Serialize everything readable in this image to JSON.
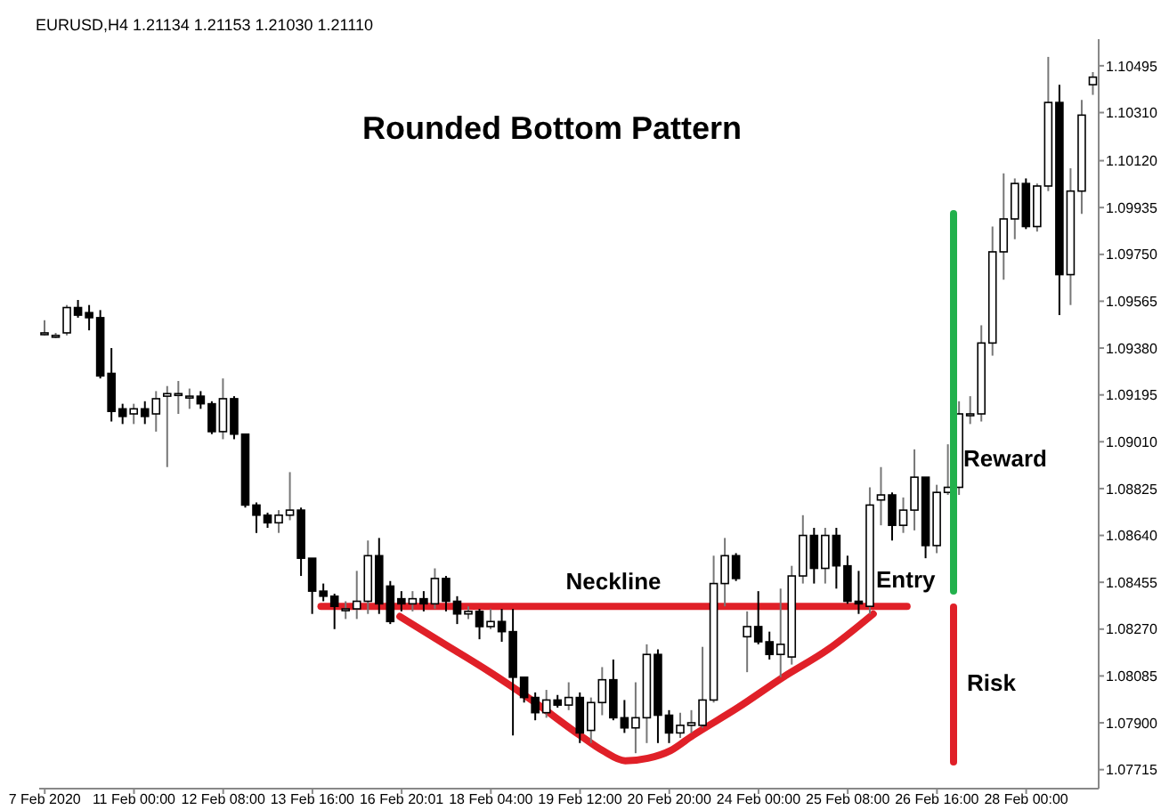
{
  "chart_data": {
    "type": "candlestick",
    "title": "Rounded Bottom Pattern",
    "annotations": [
      "EURUSD,H4  1.21134 1.21153 1.21030 1.21110",
      "Entry",
      "Reward",
      "Risk"
    ],
    "categories": [
      "7 Feb 2020",
      null,
      null,
      null,
      null,
      null,
      null,
      null,
      "11 Feb 00:00",
      null,
      null,
      null,
      null,
      null,
      null,
      null,
      "12 Feb 08:00",
      null,
      null,
      null,
      null,
      null,
      null,
      null,
      "13 Feb 16:00",
      null,
      null,
      null,
      null,
      null,
      null,
      null,
      "16 Feb 20:01",
      null,
      null,
      null,
      null,
      null,
      null,
      null,
      "18 Feb 04:00",
      null,
      null,
      null,
      null,
      null,
      null,
      null,
      "19 Feb 12:00",
      null,
      null,
      null,
      null,
      null,
      null,
      null,
      "20 Feb 20:00",
      null,
      null,
      null,
      null,
      null,
      null,
      null,
      "24 Feb 00:00",
      null,
      null,
      null,
      null,
      null,
      null,
      null,
      "25 Feb 08:00",
      null,
      null,
      null,
      null,
      null,
      null,
      null,
      "26 Feb 16:00",
      null,
      null,
      null,
      null,
      null,
      null,
      null,
      "28 Feb 00:00",
      null,
      null,
      null,
      null,
      null,
      null
    ],
    "ohlc": [
      [
        1.0944,
        1.0949,
        1.0943,
        1.0944
      ],
      [
        1.0943,
        1.0944,
        1.0942,
        1.0943
      ],
      [
        1.0944,
        1.0955,
        1.0943,
        1.0954
      ],
      [
        1.0954,
        1.0957,
        1.095,
        1.0951
      ],
      [
        1.0952,
        1.0955,
        1.0945,
        1.095
      ],
      [
        1.095,
        1.0953,
        1.0926,
        1.0927
      ],
      [
        1.0928,
        1.0938,
        1.0909,
        1.0913
      ],
      [
        1.0914,
        1.0916,
        1.0908,
        1.0911
      ],
      [
        1.0912,
        1.0916,
        1.0908,
        1.0914
      ],
      [
        1.0914,
        1.0917,
        1.0908,
        1.0911
      ],
      [
        1.0912,
        1.0921,
        1.0905,
        1.0918
      ],
      [
        1.0919,
        1.0923,
        1.0891,
        1.092
      ],
      [
        1.092,
        1.0925,
        1.0912,
        1.092
      ],
      [
        1.0919,
        1.0922,
        1.0914,
        1.0919
      ],
      [
        1.0919,
        1.0921,
        1.0914,
        1.0916
      ],
      [
        1.0916,
        1.0917,
        1.0904,
        1.0905
      ],
      [
        1.0905,
        1.0926,
        1.0902,
        1.0918
      ],
      [
        1.0918,
        1.0919,
        1.0902,
        1.0904
      ],
      [
        1.0904,
        1.0904,
        1.0875,
        1.0876
      ],
      [
        1.0876,
        1.0877,
        1.0865,
        1.0872
      ],
      [
        1.0872,
        1.0873,
        1.0867,
        1.0869
      ],
      [
        1.0869,
        1.0874,
        1.0865,
        1.0872
      ],
      [
        1.0872,
        1.0889,
        1.087,
        1.0874
      ],
      [
        1.0874,
        1.0875,
        1.0848,
        1.0855
      ],
      [
        1.0855,
        1.0855,
        1.0833,
        1.0842
      ],
      [
        1.0842,
        1.0845,
        1.0838,
        1.084
      ],
      [
        1.084,
        1.0841,
        1.0827,
        1.0836
      ],
      [
        1.0835,
        1.0838,
        1.0831,
        1.0835
      ],
      [
        1.0835,
        1.085,
        1.0831,
        1.0838
      ],
      [
        1.0838,
        1.0862,
        1.0833,
        1.0856
      ],
      [
        1.0856,
        1.0863,
        1.0833,
        1.0837
      ],
      [
        1.0844,
        1.0846,
        1.0829,
        1.083
      ],
      [
        1.0839,
        1.0842,
        1.0834,
        1.0837
      ],
      [
        1.0837,
        1.0842,
        1.0834,
        1.0839
      ],
      [
        1.0839,
        1.0842,
        1.0834,
        1.0837
      ],
      [
        1.0837,
        1.0851,
        1.0835,
        1.0847
      ],
      [
        1.0847,
        1.0848,
        1.0834,
        1.0838
      ],
      [
        1.0838,
        1.084,
        1.0829,
        1.0833
      ],
      [
        1.0833,
        1.0836,
        1.0831,
        1.0834
      ],
      [
        1.0834,
        1.0835,
        1.0823,
        1.0828
      ],
      [
        1.0828,
        1.0835,
        1.0827,
        1.083
      ],
      [
        1.083,
        1.0835,
        1.0822,
        1.0826
      ],
      [
        1.0826,
        1.0835,
        1.0785,
        1.0808
      ],
      [
        1.0808,
        1.0808,
        1.0798,
        1.08
      ],
      [
        1.08,
        1.0802,
        1.0791,
        1.0794
      ],
      [
        1.0794,
        1.0803,
        1.0792,
        1.0799
      ],
      [
        1.0799,
        1.0801,
        1.0796,
        1.0797
      ],
      [
        1.0797,
        1.0806,
        1.0795,
        1.08
      ],
      [
        1.08,
        1.0802,
        1.0782,
        1.0786
      ],
      [
        1.0787,
        1.08,
        1.0782,
        1.0798
      ],
      [
        1.0798,
        1.0812,
        1.0793,
        1.0807
      ],
      [
        1.0807,
        1.0815,
        1.0791,
        1.0792
      ],
      [
        1.0792,
        1.0799,
        1.0786,
        1.0788
      ],
      [
        1.0788,
        1.0806,
        1.0778,
        1.0792
      ],
      [
        1.0792,
        1.0821,
        1.0782,
        1.0817
      ],
      [
        1.0817,
        1.0819,
        1.0782,
        1.0793
      ],
      [
        1.0793,
        1.0795,
        1.0782,
        1.0786
      ],
      [
        1.0786,
        1.0794,
        1.0784,
        1.0789
      ],
      [
        1.0789,
        1.0795,
        1.0786,
        1.079
      ],
      [
        1.0789,
        1.082,
        1.0788,
        1.0799
      ],
      [
        1.0799,
        1.0856,
        1.0798,
        1.0845
      ],
      [
        1.0845,
        1.0863,
        1.0836,
        1.0856
      ],
      [
        1.0856,
        1.0857,
        1.0846,
        1.0847
      ],
      [
        1.0824,
        1.0834,
        1.081,
        1.0828
      ],
      [
        1.0828,
        1.0842,
        1.0821,
        1.0822
      ],
      [
        1.0822,
        1.0826,
        1.0815,
        1.0817
      ],
      [
        1.0817,
        1.0843,
        1.0808,
        1.0821
      ],
      [
        1.0816,
        1.0852,
        1.0813,
        1.0848
      ],
      [
        1.0848,
        1.0872,
        1.0845,
        1.0864
      ],
      [
        1.0864,
        1.0867,
        1.0845,
        1.0851
      ],
      [
        1.0851,
        1.0867,
        1.0845,
        1.0864
      ],
      [
        1.0864,
        1.0867,
        1.0843,
        1.0852
      ],
      [
        1.0852,
        1.0856,
        1.0837,
        1.0838
      ],
      [
        1.0838,
        1.085,
        1.0833,
        1.0837
      ],
      [
        1.0836,
        1.0883,
        1.0833,
        1.0876
      ],
      [
        1.0878,
        1.0891,
        1.0868,
        1.088
      ],
      [
        1.088,
        1.0881,
        1.0862,
        1.0868
      ],
      [
        1.0868,
        1.0879,
        1.0865,
        1.0874
      ],
      [
        1.0874,
        1.0898,
        1.0866,
        1.0887
      ],
      [
        1.0887,
        1.0887,
        1.0855,
        1.086
      ],
      [
        1.086,
        1.0884,
        1.0857,
        1.0881
      ],
      [
        1.0881,
        1.09,
        1.088,
        1.0883
      ],
      [
        1.0883,
        1.0917,
        1.088,
        1.0912
      ],
      [
        1.0912,
        1.0919,
        1.0908,
        1.0912
      ],
      [
        1.0912,
        1.0947,
        1.0909,
        1.094
      ],
      [
        1.094,
        1.0986,
        1.0935,
        1.0976
      ],
      [
        1.0976,
        1.1007,
        1.0965,
        1.0989
      ],
      [
        1.0989,
        1.1005,
        1.0981,
        1.1003
      ],
      [
        1.1003,
        1.1005,
        1.0985,
        1.0986
      ],
      [
        1.0986,
        1.1003,
        1.0984,
        1.1002
      ],
      [
        1.1002,
        1.1053,
        1.1,
        1.1035
      ],
      [
        1.1035,
        1.1042,
        1.0951,
        1.0967
      ],
      [
        1.0967,
        1.1009,
        1.0955,
        1.1
      ],
      [
        1.1,
        1.1036,
        1.0991,
        1.103
      ],
      [
        1.1042,
        1.1047,
        1.1038,
        1.1045
      ]
    ],
    "series": [
      {
        "type": "line",
        "name": "Neckline",
        "color": "#e02028",
        "values": [
          null,
          null,
          null,
          null,
          null,
          null,
          null,
          null,
          null,
          null,
          null,
          null,
          null,
          null,
          null,
          null,
          null,
          null,
          null,
          null,
          null,
          null,
          null,
          null,
          null,
          1.0836,
          null,
          null,
          null,
          null,
          null,
          null,
          null,
          null,
          null,
          null,
          null,
          null,
          null,
          null,
          null,
          null,
          null,
          null,
          null,
          null,
          null,
          null,
          null,
          null,
          null,
          null,
          null,
          null,
          null,
          null,
          null,
          null,
          null,
          null,
          null,
          null,
          null,
          null,
          null,
          null,
          null,
          null,
          null,
          null,
          null,
          null,
          null,
          null,
          null,
          null,
          null,
          1.0836,
          null,
          null,
          null,
          null,
          null,
          null,
          null,
          null,
          null,
          null,
          null,
          null,
          null,
          null,
          null,
          null,
          null
        ]
      },
      {
        "type": "line",
        "color": "#e02028",
        "values": [
          null,
          null,
          null,
          null,
          null,
          null,
          null,
          null,
          null,
          null,
          null,
          null,
          null,
          null,
          null,
          null,
          null,
          null,
          null,
          null,
          null,
          null,
          null,
          null,
          null,
          null,
          null,
          null,
          null,
          null,
          null,
          null,
          1.0832,
          null,
          null,
          null,
          1.0821,
          null,
          null,
          null,
          1.081,
          null,
          null,
          null,
          1.0798,
          null,
          null,
          null,
          1.0785,
          null,
          1.0779,
          null,
          1.0775,
          null,
          1.0776,
          null,
          1.0779,
          null,
          1.0785,
          null,
          null,
          null,
          1.0796,
          null,
          null,
          null,
          1.0808,
          null,
          null,
          null,
          1.0819,
          null,
          null,
          null,
          1.0833,
          null,
          null,
          null,
          null,
          null,
          null,
          null,
          null,
          null,
          null,
          null,
          null,
          null,
          null,
          null,
          null,
          null,
          null,
          null,
          null
        ]
      }
    ],
    "ylim": [
      1.0764,
      1.106
    ],
    "yticks": [
      {
        "value": 1.10495,
        "label": "1.10495"
      },
      {
        "value": 1.1031,
        "label": "1.10310"
      },
      {
        "value": 1.1012,
        "label": "1.10120"
      },
      {
        "value": 1.09935,
        "label": "1.09935"
      },
      {
        "value": 1.0975,
        "label": "1.09750"
      },
      {
        "value": 1.09565,
        "label": "1.09565"
      },
      {
        "value": 1.0938,
        "label": "1.09380"
      },
      {
        "value": 1.09195,
        "label": "1.09195"
      },
      {
        "value": 1.0901,
        "label": "1.09010"
      },
      {
        "value": 1.08825,
        "label": "1.08825"
      },
      {
        "value": 1.0864,
        "label": "1.08640"
      },
      {
        "value": 1.08455,
        "label": "1.08455"
      },
      {
        "value": 1.0827,
        "label": "1.08270"
      },
      {
        "value": 1.08085,
        "label": "1.08085"
      },
      {
        "value": 1.079,
        "label": "1.07900"
      },
      {
        "value": 1.07715,
        "label": "1.07715"
      }
    ],
    "grid": false,
    "legend": false
  }
}
